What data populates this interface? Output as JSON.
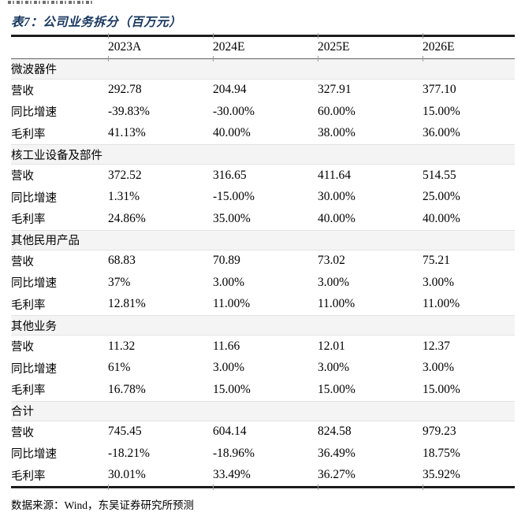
{
  "page": {
    "title": "表7：公司业务拆分（百万元）",
    "source": "数据来源：Wind，东吴证券研究所预测"
  },
  "colors": {
    "title_navy": "#17375e",
    "rule_dark": "#1b1b1b",
    "section_band_bg": "#f4f4f4"
  },
  "table": {
    "columns": [
      "2023A",
      "2024E",
      "2025E",
      "2026E"
    ],
    "sections": [
      {
        "name": "微波器件",
        "rows": [
          {
            "label": "营收",
            "values": [
              "292.78",
              "204.94",
              "327.91",
              "377.10"
            ]
          },
          {
            "label": "同比增速",
            "values": [
              "-39.83%",
              "-30.00%",
              "60.00%",
              "15.00%"
            ]
          },
          {
            "label": "毛利率",
            "values": [
              "41.13%",
              "40.00%",
              "38.00%",
              "36.00%"
            ]
          }
        ]
      },
      {
        "name": "核工业设备及部件",
        "rows": [
          {
            "label": "营收",
            "values": [
              "372.52",
              "316.65",
              "411.64",
              "514.55"
            ]
          },
          {
            "label": "同比增速",
            "values": [
              "1.31%",
              "-15.00%",
              "30.00%",
              "25.00%"
            ]
          },
          {
            "label": "毛利率",
            "values": [
              "24.86%",
              "35.00%",
              "40.00%",
              "40.00%"
            ]
          }
        ]
      },
      {
        "name": "其他民用产品",
        "rows": [
          {
            "label": "营收",
            "values": [
              "68.83",
              "70.89",
              "73.02",
              "75.21"
            ]
          },
          {
            "label": "同比增速",
            "values": [
              "37%",
              "3.00%",
              "3.00%",
              "3.00%"
            ]
          },
          {
            "label": "毛利率",
            "values": [
              "12.81%",
              "11.00%",
              "11.00%",
              "11.00%"
            ]
          }
        ]
      },
      {
        "name": "其他业务",
        "rows": [
          {
            "label": "营收",
            "values": [
              "11.32",
              "11.66",
              "12.01",
              "12.37"
            ]
          },
          {
            "label": "同比增速",
            "values": [
              "61%",
              "3.00%",
              "3.00%",
              "3.00%"
            ]
          },
          {
            "label": "毛利率",
            "values": [
              "16.78%",
              "15.00%",
              "15.00%",
              "15.00%"
            ]
          }
        ]
      },
      {
        "name": "合计",
        "rows": [
          {
            "label": "营收",
            "values": [
              "745.45",
              "604.14",
              "824.58",
              "979.23"
            ]
          },
          {
            "label": "同比增速",
            "values": [
              "-18.21%",
              "-18.96%",
              "36.49%",
              "18.75%"
            ]
          },
          {
            "label": "毛利率",
            "values": [
              "30.01%",
              "33.49%",
              "36.27%",
              "35.92%"
            ]
          }
        ]
      }
    ]
  }
}
